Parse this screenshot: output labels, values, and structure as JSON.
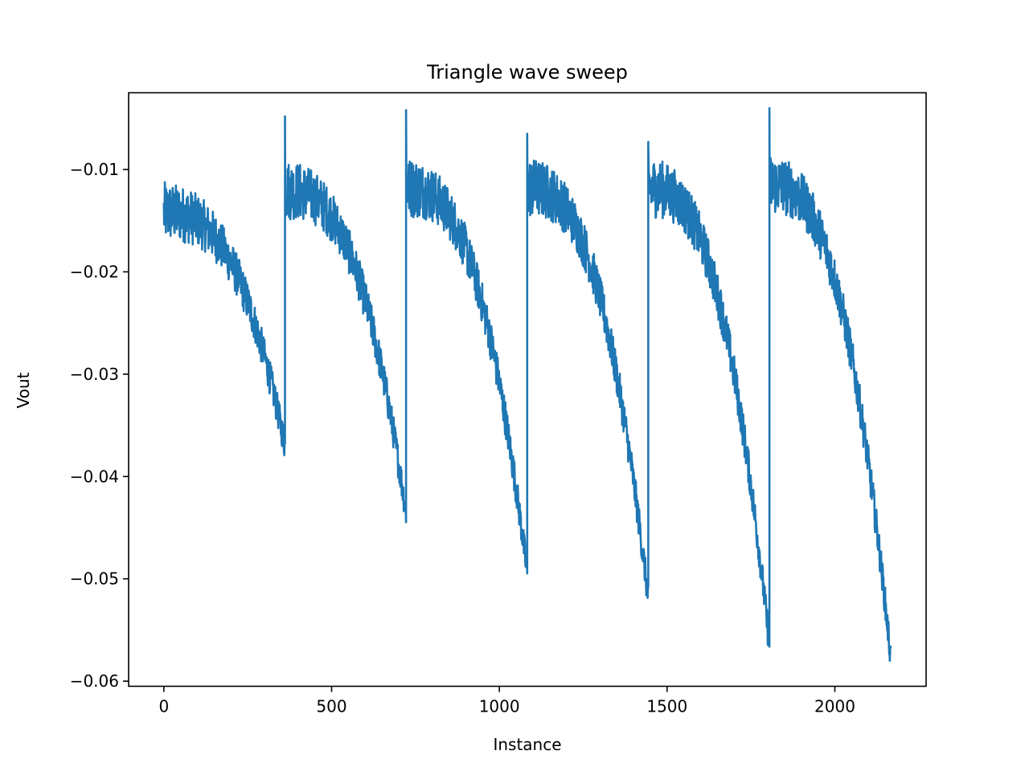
{
  "chart_data": {
    "type": "line",
    "title": "Triangle wave sweep",
    "xlabel": "Instance",
    "ylabel": "Vout",
    "xlim": [
      -105,
      2272
    ],
    "ylim": [
      -0.0605,
      -0.0025
    ],
    "xticks": [
      0,
      500,
      1000,
      1500,
      2000
    ],
    "xtick_labels": [
      "0",
      "500",
      "1000",
      "1500",
      "2000"
    ],
    "yticks": [
      -0.01,
      -0.02,
      -0.03,
      -0.04,
      -0.05,
      -0.06
    ],
    "ytick_labels": [
      "−0.01",
      "−0.02",
      "−0.03",
      "−0.04",
      "−0.05",
      "−0.06"
    ],
    "color": "#1f77b4",
    "grid": false,
    "series": [
      {
        "name": "Vout",
        "segments": [
          {
            "x_start": 0,
            "x_end": 361,
            "y_start": -0.0142,
            "y_end": -0.037,
            "y_peak": null,
            "noise_start": 0.003,
            "noise_end": 0.0015
          },
          {
            "x_start": 361,
            "x_end": 722,
            "y_start": -0.012,
            "y_end": -0.0435,
            "y_peak": -0.0048,
            "noise_start": 0.003,
            "noise_end": 0.0015
          },
          {
            "x_start": 722,
            "x_end": 1083,
            "y_start": -0.0118,
            "y_end": -0.0495,
            "y_peak": -0.0042,
            "noise_start": 0.003,
            "noise_end": 0.0015
          },
          {
            "x_start": 1083,
            "x_end": 1444,
            "y_start": -0.0118,
            "y_end": -0.052,
            "y_peak": -0.0065,
            "noise_start": 0.003,
            "noise_end": 0.0015
          },
          {
            "x_start": 1444,
            "x_end": 1805,
            "y_start": -0.0118,
            "y_end": -0.0565,
            "y_peak": -0.0073,
            "noise_start": 0.003,
            "noise_end": 0.0015
          },
          {
            "x_start": 1805,
            "x_end": 2166,
            "y_start": -0.0115,
            "y_end": -0.0575,
            "y_peak": -0.004,
            "noise_start": 0.003,
            "noise_end": 0.0015
          }
        ]
      }
    ]
  }
}
